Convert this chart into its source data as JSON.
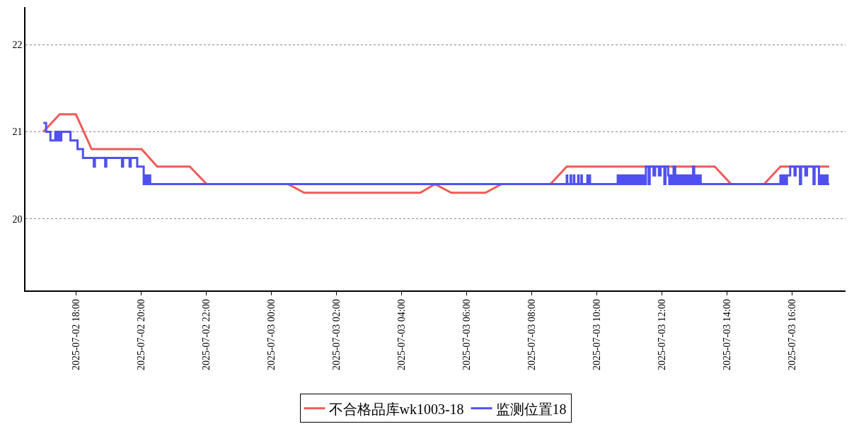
{
  "chart_data": {
    "type": "line",
    "xlim": [
      "2025-07-02T16:27",
      "2025-07-03T17:39"
    ],
    "ylim": [
      19.18,
      22.43
    ],
    "yticks": [
      20,
      21,
      22
    ],
    "xticks": [
      {
        "value": "2025-07-02T18:00",
        "label": "2025-07-02 18:00"
      },
      {
        "value": "2025-07-02T20:00",
        "label": "2025-07-02 20:00"
      },
      {
        "value": "2025-07-02T22:00",
        "label": "2025-07-02 22:00"
      },
      {
        "value": "2025-07-03T00:00",
        "label": "2025-07-03 00:00"
      },
      {
        "value": "2025-07-03T02:00",
        "label": "2025-07-03 02:00"
      },
      {
        "value": "2025-07-03T04:00",
        "label": "2025-07-03 04:00"
      },
      {
        "value": "2025-07-03T06:00",
        "label": "2025-07-03 06:00"
      },
      {
        "value": "2025-07-03T08:00",
        "label": "2025-07-03 08:00"
      },
      {
        "value": "2025-07-03T10:00",
        "label": "2025-07-03 10:00"
      },
      {
        "value": "2025-07-03T12:00",
        "label": "2025-07-03 12:00"
      },
      {
        "value": "2025-07-03T14:00",
        "label": "2025-07-03 14:00"
      },
      {
        "value": "2025-07-03T16:00",
        "label": "2025-07-03 16:00"
      }
    ],
    "grid": "y",
    "legend": "bottom",
    "marker": "none",
    "line_style": "solid",
    "series": [
      {
        "name": "不合格品库wk1003-18",
        "color": "#f05a5a",
        "x": [
          "2025-07-02T17:00",
          "2025-07-02T17:30",
          "2025-07-02T18:00",
          "2025-07-02T18:29",
          "2025-07-02T20:01",
          "2025-07-02T20:30",
          "2025-07-02T21:30",
          "2025-07-02T22:01",
          "2025-07-03T00:31",
          "2025-07-03T01:01",
          "2025-07-03T04:35",
          "2025-07-03T05:02",
          "2025-07-03T05:32",
          "2025-07-03T06:35",
          "2025-07-03T07:05",
          "2025-07-03T08:35",
          "2025-07-03T09:05",
          "2025-07-03T13:38",
          "2025-07-03T14:08",
          "2025-07-03T15:09",
          "2025-07-03T15:39",
          "2025-07-03T17:09"
        ],
        "values": [
          21.0,
          21.2,
          21.2,
          20.8,
          20.8,
          20.6,
          20.6,
          20.4,
          20.4,
          20.3,
          20.3,
          20.4,
          20.3,
          20.3,
          20.4,
          20.4,
          20.6,
          20.6,
          20.4,
          20.4,
          20.6,
          20.6
        ]
      },
      {
        "name": "监测位置18",
        "color": "#5050f0",
        "type": "step",
        "x": [
          "2025-07-02T17:00",
          "2025-07-02T17:05",
          "2025-07-02T17:13",
          "2025-07-02T17:22",
          "2025-07-02T17:24",
          "2025-07-02T17:26",
          "2025-07-02T17:28",
          "2025-07-02T17:30",
          "2025-07-02T17:32",
          "2025-07-02T17:33",
          "2025-07-02T17:50",
          "2025-07-02T18:03",
          "2025-07-02T18:13",
          "2025-07-02T18:33",
          "2025-07-02T18:35",
          "2025-07-02T18:54",
          "2025-07-02T18:56",
          "2025-07-02T19:25",
          "2025-07-02T19:27",
          "2025-07-02T19:39",
          "2025-07-02T19:41",
          "2025-07-02T19:53",
          "2025-07-02T20:05",
          "2025-07-02T20:07",
          "2025-07-02T20:09",
          "2025-07-02T20:11",
          "2025-07-02T20:13",
          "2025-07-02T20:15",
          "2025-07-02T20:17",
          "2025-07-03T09:05",
          "2025-07-03T09:06",
          "2025-07-03T09:12",
          "2025-07-03T09:13",
          "2025-07-03T09:18",
          "2025-07-03T09:19",
          "2025-07-03T09:26",
          "2025-07-03T09:27",
          "2025-07-03T09:32",
          "2025-07-03T09:33",
          "2025-07-03T09:43",
          "2025-07-03T09:44",
          "2025-07-03T09:47",
          "2025-07-03T09:48",
          "2025-07-03T10:39",
          "2025-07-03T10:41",
          "2025-07-03T10:43",
          "2025-07-03T10:45",
          "2025-07-03T10:48",
          "2025-07-03T10:50",
          "2025-07-03T10:52",
          "2025-07-03T10:54",
          "2025-07-03T10:57",
          "2025-07-03T10:59",
          "2025-07-03T11:02",
          "2025-07-03T11:04",
          "2025-07-03T11:07",
          "2025-07-03T11:09",
          "2025-07-03T11:12",
          "2025-07-03T11:14",
          "2025-07-03T11:17",
          "2025-07-03T11:19",
          "2025-07-03T11:22",
          "2025-07-03T11:24",
          "2025-07-03T11:27",
          "2025-07-03T11:29",
          "2025-07-03T11:31",
          "2025-07-03T11:36",
          "2025-07-03T11:38",
          "2025-07-03T11:45",
          "2025-07-03T11:48",
          "2025-07-03T11:55",
          "2025-07-03T11:58",
          "2025-07-03T12:05",
          "2025-07-03T12:07",
          "2025-07-03T12:12",
          "2025-07-03T12:14",
          "2025-07-03T12:16",
          "2025-07-03T12:19",
          "2025-07-03T12:22",
          "2025-07-03T12:25",
          "2025-07-03T12:28",
          "2025-07-03T12:31",
          "2025-07-03T12:34",
          "2025-07-03T12:37",
          "2025-07-03T12:40",
          "2025-07-03T12:43",
          "2025-07-03T12:46",
          "2025-07-03T12:49",
          "2025-07-03T12:52",
          "2025-07-03T12:55",
          "2025-07-03T12:58",
          "2025-07-03T13:00",
          "2025-07-03T13:03",
          "2025-07-03T13:06",
          "2025-07-03T13:09",
          "2025-07-03T13:12",
          "2025-07-03T15:39",
          "2025-07-03T15:42",
          "2025-07-03T15:45",
          "2025-07-03T15:48",
          "2025-07-03T15:51",
          "2025-07-03T15:57",
          "2025-07-03T16:05",
          "2025-07-03T16:07",
          "2025-07-03T16:15",
          "2025-07-03T16:17",
          "2025-07-03T16:25",
          "2025-07-03T16:28",
          "2025-07-03T16:40",
          "2025-07-03T16:42",
          "2025-07-03T16:50",
          "2025-07-03T16:53",
          "2025-07-03T16:56",
          "2025-07-03T16:58",
          "2025-07-03T17:01",
          "2025-07-03T17:03",
          "2025-07-03T17:06",
          "2025-07-03T17:09"
        ],
        "values": [
          21.1,
          21.0,
          20.9,
          21.0,
          20.9,
          21.0,
          20.9,
          21.0,
          20.9,
          21.0,
          20.9,
          20.8,
          20.7,
          20.6,
          20.7,
          20.6,
          20.7,
          20.6,
          20.7,
          20.6,
          20.7,
          20.6,
          20.4,
          20.5,
          20.4,
          20.5,
          20.4,
          20.5,
          20.4,
          20.5,
          20.4,
          20.5,
          20.4,
          20.5,
          20.4,
          20.5,
          20.4,
          20.5,
          20.4,
          20.5,
          20.4,
          20.5,
          20.4,
          20.5,
          20.4,
          20.5,
          20.4,
          20.5,
          20.4,
          20.5,
          20.4,
          20.5,
          20.4,
          20.5,
          20.4,
          20.5,
          20.4,
          20.5,
          20.4,
          20.5,
          20.4,
          20.5,
          20.4,
          20.5,
          20.4,
          20.6,
          20.4,
          20.6,
          20.5,
          20.6,
          20.5,
          20.6,
          20.4,
          20.6,
          20.5,
          20.4,
          20.5,
          20.4,
          20.6,
          20.4,
          20.5,
          20.4,
          20.5,
          20.4,
          20.5,
          20.4,
          20.5,
          20.4,
          20.5,
          20.4,
          20.6,
          20.4,
          20.5,
          20.4,
          20.5,
          20.4,
          20.5,
          20.4,
          20.5,
          20.4,
          20.5,
          20.6,
          20.5,
          20.6,
          20.4,
          20.6,
          20.5,
          20.6,
          20.4,
          20.6,
          20.4,
          20.5,
          20.4,
          20.5,
          20.4,
          20.5,
          20.4,
          20.4
        ]
      }
    ]
  }
}
